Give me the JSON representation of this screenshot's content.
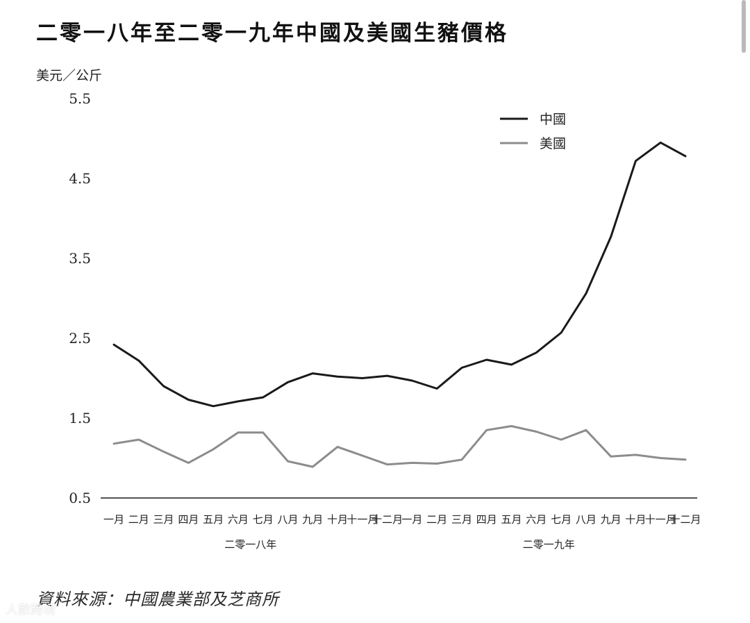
{
  "chart_data": {
    "type": "line",
    "title": "二零一八年至二零一九年中國及美國生豬價格",
    "ylabel": "美元／公斤",
    "xlabel": "",
    "ylim": [
      0.5,
      5.5
    ],
    "yticks": [
      "0.5",
      "1.5",
      "2.5",
      "3.5",
      "4.5",
      "5.5"
    ],
    "ytick_values": [
      0.5,
      1.5,
      2.5,
      3.5,
      4.5,
      5.5
    ],
    "categories": [
      "一月",
      "二月",
      "三月",
      "四月",
      "五月",
      "六月",
      "七月",
      "八月",
      "九月",
      "十月",
      "十一月",
      "十二月",
      "一月",
      "二月",
      "三月",
      "四月",
      "五月",
      "六月",
      "七月",
      "八月",
      "九月",
      "十月",
      "十一月",
      "十二月"
    ],
    "year_groups": [
      {
        "label": "二零一八年",
        "start": 0,
        "end": 11
      },
      {
        "label": "二零一九年",
        "start": 12,
        "end": 23
      }
    ],
    "grid": false,
    "legend_placement": "top-right",
    "series": [
      {
        "name": "中國",
        "color": "#1a1a1a",
        "values": [
          2.42,
          2.22,
          1.9,
          1.73,
          1.65,
          1.71,
          1.76,
          1.95,
          2.06,
          2.02,
          2.0,
          2.03,
          1.97,
          1.87,
          2.13,
          2.23,
          2.17,
          2.32,
          2.57,
          3.06,
          3.77,
          4.72,
          4.95,
          4.78
        ]
      },
      {
        "name": "美國",
        "color": "#8c8c8c",
        "values": [
          1.18,
          1.23,
          1.08,
          0.94,
          1.11,
          1.32,
          1.32,
          0.96,
          0.89,
          1.14,
          1.03,
          0.92,
          0.94,
          0.93,
          0.98,
          1.35,
          1.4,
          1.33,
          1.23,
          1.35,
          1.02,
          1.04,
          1.0,
          0.98
        ]
      }
    ],
    "source": "資料來源：中國農業部及芝商所"
  },
  "watermark": "人數跨境"
}
